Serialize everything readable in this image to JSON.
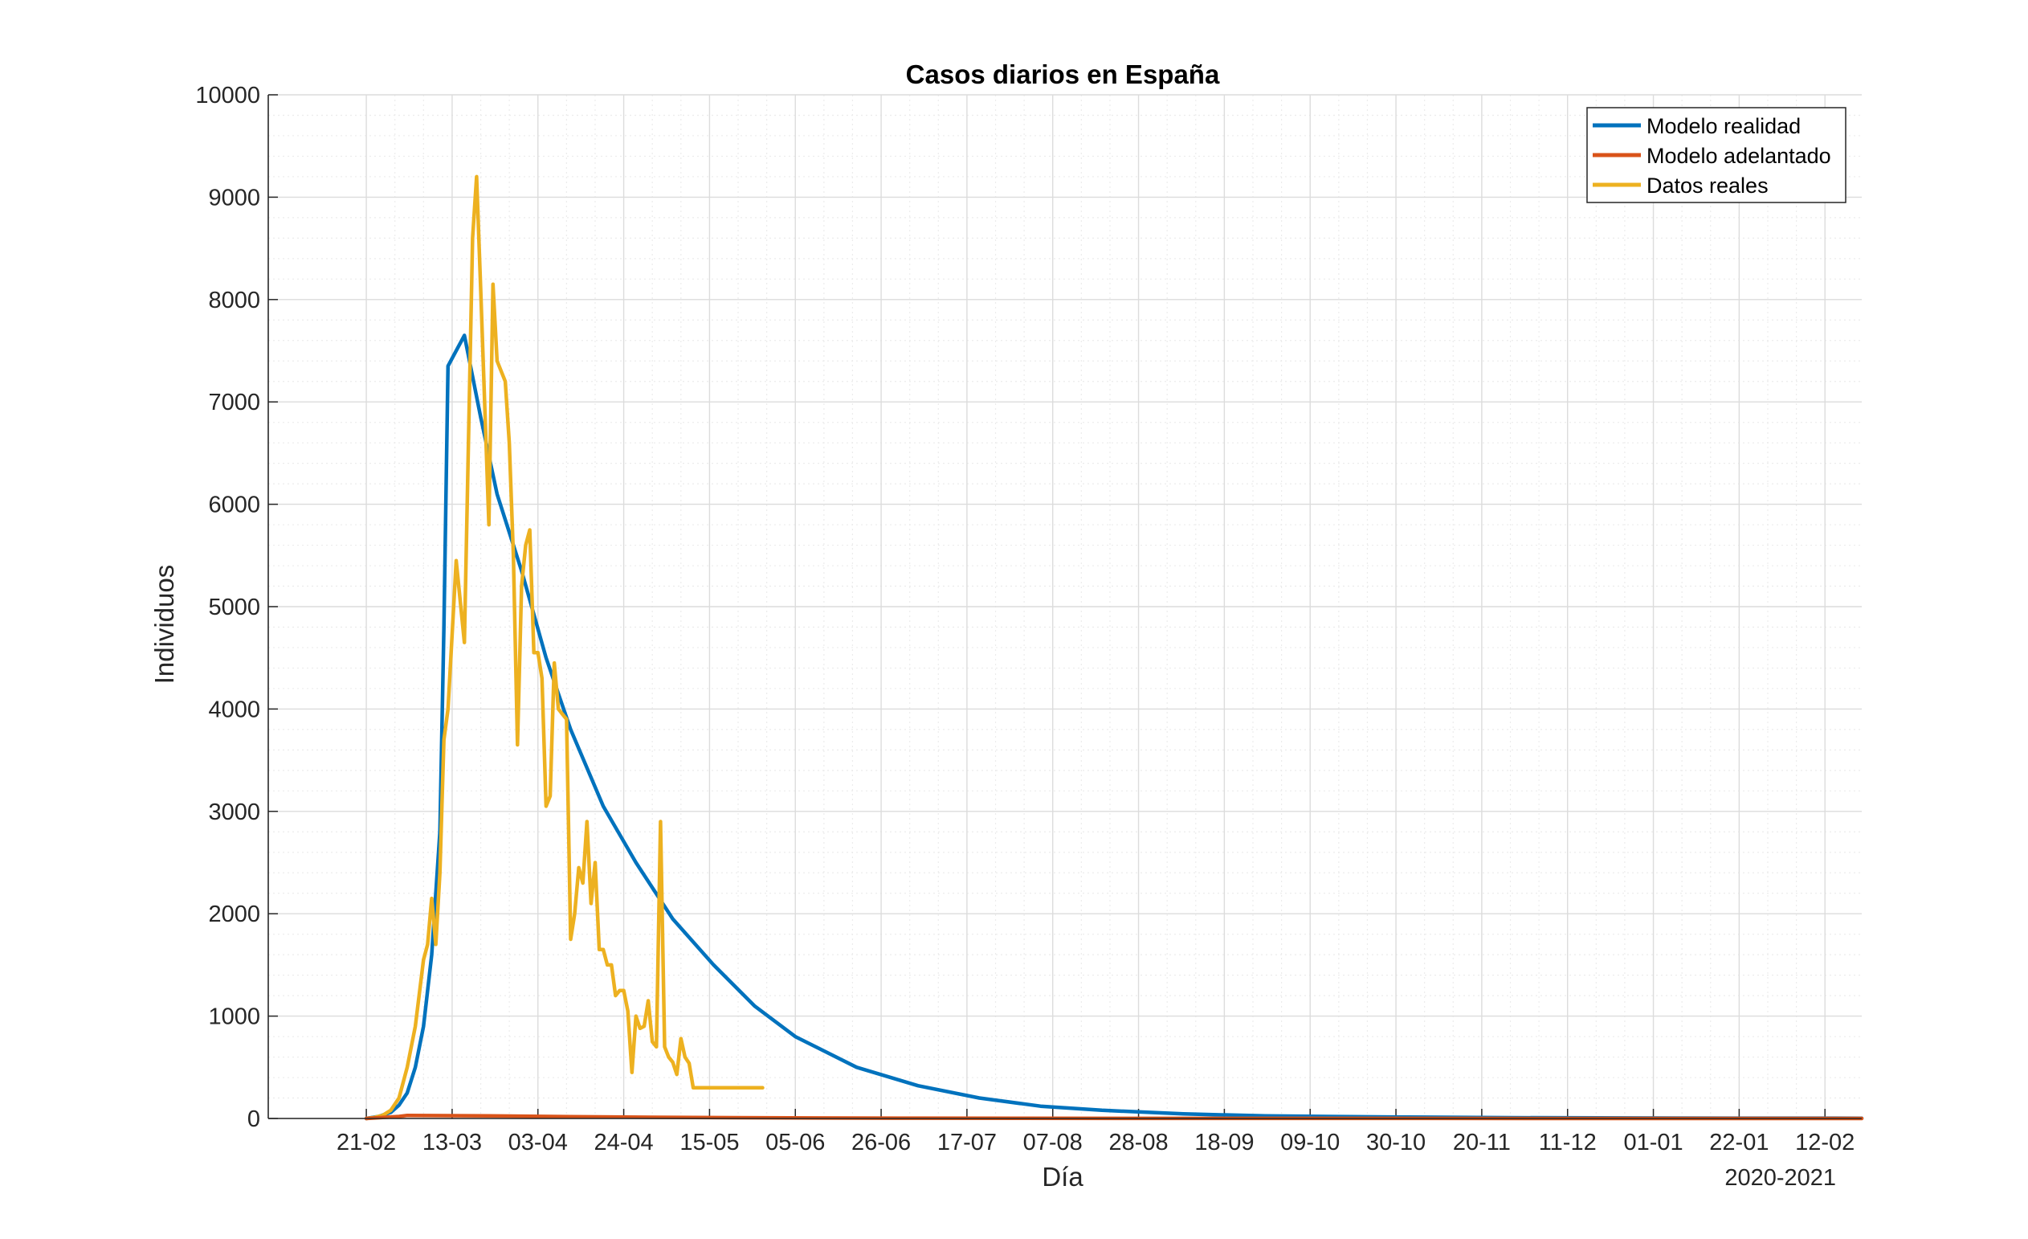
{
  "chart_data": {
    "type": "line",
    "title": "Casos diarios en España",
    "xlabel": "Día",
    "ylabel": "Individuos",
    "secondary_xlabel": "2020-2021",
    "ylim": [
      0,
      10000
    ],
    "yticks": [
      0,
      1000,
      2000,
      3000,
      4000,
      5000,
      6000,
      7000,
      8000,
      9000,
      10000
    ],
    "x_start_label": "21-02",
    "xlim_days": [
      -24,
      366
    ],
    "xtick_days": [
      0,
      21,
      42,
      63,
      84,
      105,
      126,
      147,
      168,
      189,
      210,
      231,
      252,
      273,
      294,
      315,
      336,
      357
    ],
    "xtick_labels": [
      "21-02",
      "13-03",
      "03-04",
      "24-04",
      "15-05",
      "05-06",
      "26-06",
      "17-07",
      "07-08",
      "28-08",
      "18-09",
      "09-10",
      "30-10",
      "20-11",
      "11-12",
      "01-01",
      "22-01",
      "12-02"
    ],
    "grid": true,
    "minor_grid": true,
    "legend_position": "top-right",
    "series": [
      {
        "name": "Modelo realidad",
        "color": "#0072BD",
        "x": [
          0,
          3,
          6,
          8,
          10,
          12,
          14,
          16,
          18,
          19,
          20,
          24,
          28,
          32,
          38,
          44,
          50,
          58,
          66,
          75,
          85,
          95,
          105,
          120,
          135,
          150,
          165,
          180,
          200,
          220,
          250,
          280,
          320,
          366
        ],
        "y": [
          0,
          20,
          60,
          130,
          250,
          500,
          900,
          1600,
          2800,
          4800,
          7350,
          7650,
          6850,
          6100,
          5350,
          4500,
          3800,
          3050,
          2500,
          1950,
          1500,
          1100,
          800,
          500,
          320,
          200,
          120,
          80,
          45,
          25,
          15,
          8,
          4,
          2
        ]
      },
      {
        "name": "Modelo adelantado",
        "color": "#D95319",
        "x": [
          0,
          4,
          8,
          10,
          30,
          50,
          70,
          90,
          110,
          130,
          160,
          200,
          250,
          300,
          366
        ],
        "y": [
          0,
          10,
          20,
          30,
          25,
          18,
          12,
          8,
          5,
          3,
          2,
          1,
          1,
          0,
          0
        ],
        "ylist_note": ""
      },
      {
        "name": "Datos reales",
        "color": "#EDB120",
        "x": [
          0,
          2,
          4,
          6,
          8,
          10,
          12,
          14,
          15,
          16,
          17,
          18,
          19,
          20,
          22,
          24,
          26,
          27,
          28,
          30,
          31,
          32,
          34,
          35,
          36,
          37,
          38,
          39,
          40,
          41,
          42,
          43,
          44,
          45,
          46,
          47,
          48,
          49,
          50,
          51,
          52,
          53,
          54,
          55,
          56,
          57,
          58,
          59,
          60,
          61,
          62,
          63,
          64,
          65,
          66,
          67,
          68,
          69,
          70,
          71,
          72,
          73,
          74,
          75,
          76,
          77,
          78,
          79,
          80,
          81,
          82,
          83,
          84,
          85,
          86,
          87,
          88,
          89,
          90,
          91,
          92,
          93,
          94,
          95,
          96,
          97
        ],
        "y": [
          0,
          10,
          30,
          80,
          200,
          500,
          900,
          1550,
          1700,
          2150,
          1700,
          2400,
          3700,
          4000,
          5450,
          4650,
          8600,
          9200,
          8100,
          5800,
          8150,
          7400,
          7200,
          6600,
          5500,
          3650,
          5200,
          5600,
          5750,
          4550,
          4550,
          4300,
          3050,
          3150,
          4450,
          4000,
          3950,
          3900,
          1750,
          2000,
          2450,
          2300,
          2900,
          2100,
          2500,
          1650,
          1650,
          1500,
          1500,
          1200,
          1250,
          1250,
          1050,
          450,
          1000,
          880,
          900,
          1150,
          750,
          700,
          2900,
          700,
          600,
          550,
          430,
          780,
          600,
          540,
          300,
          300,
          300,
          300,
          300,
          300,
          300,
          300,
          300,
          300,
          300,
          300,
          300,
          300,
          300,
          300,
          300,
          300
        ]
      }
    ]
  }
}
